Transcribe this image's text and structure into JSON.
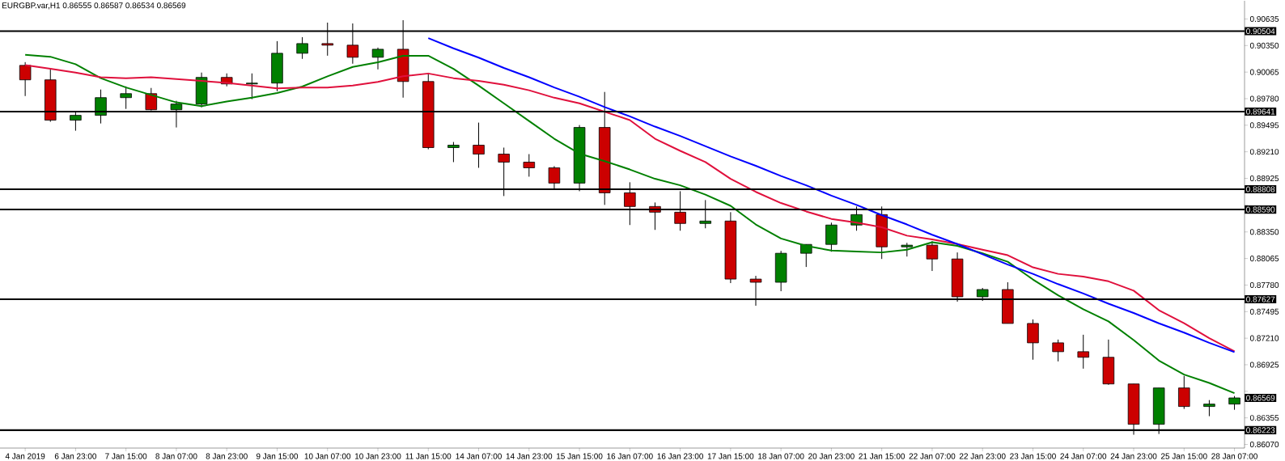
{
  "chart_data": {
    "type": "candlestick",
    "title": "EURGBP.var,H1  0.86555 0.86587 0.86534 0.86569",
    "categories": [
      "4 Jan 2019",
      null,
      "6 Jan 23:00",
      null,
      "7 Jan 15:00",
      null,
      "8 Jan 07:00",
      null,
      "8 Jan 23:00",
      null,
      "9 Jan 15:00",
      null,
      "10 Jan 07:00",
      null,
      "10 Jan 23:00",
      null,
      "11 Jan 15:00",
      null,
      "14 Jan 07:00",
      null,
      "14 Jan 23:00",
      null,
      "15 Jan 15:00",
      null,
      "16 Jan 07:00",
      null,
      "16 Jan 23:00",
      null,
      "17 Jan 15:00",
      null,
      "18 Jan 07:00",
      null,
      "20 Jan 23:00",
      null,
      "21 Jan 15:00",
      null,
      "22 Jan 07:00",
      null,
      "22 Jan 23:00",
      null,
      "23 Jan 15:00",
      null,
      "24 Jan 07:00",
      null,
      "24 Jan 23:00",
      null,
      "25 Jan 15:00",
      null,
      "28 Jan 07:00"
    ],
    "ohlc": [
      [
        0.90137,
        0.90172,
        0.89808,
        0.89982
      ],
      [
        0.89982,
        0.90094,
        0.89532,
        0.89549
      ],
      [
        0.89549,
        0.89635,
        0.89436,
        0.89601
      ],
      [
        0.89601,
        0.89878,
        0.89514,
        0.89791
      ],
      [
        0.89791,
        0.89912,
        0.8967,
        0.89834
      ],
      [
        0.89834,
        0.89895,
        0.89653,
        0.89661
      ],
      [
        0.89661,
        0.89757,
        0.89471,
        0.89722
      ],
      [
        0.89722,
        0.9006,
        0.89687,
        0.90008
      ],
      [
        0.90008,
        0.90051,
        0.89912,
        0.89938
      ],
      [
        0.89938,
        0.90051,
        0.89774,
        0.89947
      ],
      [
        0.89947,
        0.90397,
        0.8986,
        0.90267
      ],
      [
        0.90267,
        0.9044,
        0.90207,
        0.90371
      ],
      [
        0.90371,
        0.90596,
        0.90241,
        0.90354
      ],
      [
        0.90354,
        0.90587,
        0.90155,
        0.90224
      ],
      [
        0.90224,
        0.90328,
        0.90094,
        0.9031
      ],
      [
        0.9031,
        0.90622,
        0.89791,
        0.89964
      ],
      [
        0.89964,
        0.90051,
        0.89237,
        0.89255
      ],
      [
        0.89255,
        0.89315,
        0.89099,
        0.89281
      ],
      [
        0.89281,
        0.89523,
        0.89038,
        0.89185
      ],
      [
        0.89185,
        0.89255,
        0.88735,
        0.89099
      ],
      [
        0.89099,
        0.89185,
        0.88943,
        0.89038
      ],
      [
        0.89038,
        0.89056,
        0.88813,
        0.88874
      ],
      [
        0.88874,
        0.89497,
        0.88787,
        0.89471
      ],
      [
        0.89471,
        0.89852,
        0.8864,
        0.8877
      ],
      [
        0.8877,
        0.88883,
        0.88424,
        0.88623
      ],
      [
        0.88623,
        0.88666,
        0.88372,
        0.88562
      ],
      [
        0.88562,
        0.88787,
        0.88363,
        0.88441
      ],
      [
        0.88441,
        0.88692,
        0.88389,
        0.88467
      ],
      [
        0.88467,
        0.88562,
        0.87801,
        0.87844
      ],
      [
        0.87844,
        0.87879,
        0.87558,
        0.8781
      ],
      [
        0.8781,
        0.88147,
        0.87714,
        0.88121
      ],
      [
        0.88121,
        0.88216,
        0.87974,
        0.88216
      ],
      [
        0.88216,
        0.8845,
        0.88138,
        0.88424
      ],
      [
        0.88424,
        0.88623,
        0.88363,
        0.88536
      ],
      [
        0.88536,
        0.88623,
        0.8806,
        0.8819
      ],
      [
        0.8819,
        0.88233,
        0.88086,
        0.88208
      ],
      [
        0.88208,
        0.88251,
        0.87931,
        0.8806
      ],
      [
        0.8806,
        0.8813,
        0.87602,
        0.87654
      ],
      [
        0.87654,
        0.87749,
        0.8761,
        0.87732
      ],
      [
        0.87732,
        0.8781,
        0.87368,
        0.87368
      ],
      [
        0.87368,
        0.87411,
        0.86979,
        0.8716
      ],
      [
        0.8716,
        0.87195,
        0.86961,
        0.87065
      ],
      [
        0.87065,
        0.87247,
        0.86883,
        0.87005
      ],
      [
        0.87005,
        0.87195,
        0.8671,
        0.86719
      ],
      [
        0.86719,
        0.86719,
        0.86174,
        0.86286
      ],
      [
        0.86286,
        0.86676,
        0.86182,
        0.86676
      ],
      [
        0.86676,
        0.86806,
        0.86451,
        0.86477
      ],
      [
        0.86477,
        0.86546,
        0.86373,
        0.86503
      ],
      [
        0.86503,
        0.86589,
        0.86442,
        0.86569
      ]
    ],
    "colors": [
      "#cc0000",
      "#cc0000",
      "#008000",
      "#008000",
      "#008000",
      "#cc0000",
      "#008000",
      "#008000",
      "#cc0000",
      "#008000",
      "#008000",
      "#008000",
      "#cc0000",
      "#cc0000",
      "#008000",
      "#cc0000",
      "#cc0000",
      "#008000",
      "#cc0000",
      "#cc0000",
      "#cc0000",
      "#cc0000",
      "#008000",
      "#cc0000",
      "#cc0000",
      "#cc0000",
      "#cc0000",
      "#008000",
      "#cc0000",
      "#cc0000",
      "#008000",
      "#008000",
      "#008000",
      "#008000",
      "#cc0000",
      "#008000",
      "#cc0000",
      "#cc0000",
      "#008000",
      "#cc0000",
      "#cc0000",
      "#cc0000",
      "#cc0000",
      "#cc0000",
      "#cc0000",
      "#008000",
      "#cc0000",
      "#008000",
      "#008000"
    ],
    "series": [
      {
        "type": "line",
        "color": "#008000",
        "values": [
          0.9025,
          0.9023,
          0.9015,
          0.9,
          0.899,
          0.8982,
          0.8974,
          0.897,
          0.8975,
          0.8979,
          0.8984,
          0.8991,
          0.9002,
          0.9012,
          0.9017,
          0.9024,
          0.9024,
          0.901,
          0.8992,
          0.8973,
          0.8954,
          0.8935,
          0.8919,
          0.8911,
          0.8902,
          0.8892,
          0.8885,
          0.8875,
          0.8863,
          0.8843,
          0.8828,
          0.882,
          0.8815,
          0.8814,
          0.8813,
          0.8816,
          0.8824,
          0.882,
          0.8812,
          0.8803,
          0.8784,
          0.8767,
          0.8752,
          0.8739,
          0.8719,
          0.8697,
          0.8682,
          0.8673,
          0.8662
        ]
      },
      {
        "type": "line",
        "color": "#e0103c",
        "values": [
          0.9014,
          0.901,
          0.9006,
          0.9001,
          0.9,
          0.9001,
          0.8999,
          0.8997,
          0.8995,
          0.8992,
          0.8989,
          0.899,
          0.899,
          0.8992,
          0.8996,
          0.9002,
          0.9005,
          0.9,
          0.8997,
          0.8993,
          0.8987,
          0.8979,
          0.8973,
          0.8964,
          0.8955,
          0.8935,
          0.8922,
          0.891,
          0.8892,
          0.8878,
          0.8866,
          0.8857,
          0.8849,
          0.8845,
          0.884,
          0.8831,
          0.8827,
          0.8822,
          0.8816,
          0.881,
          0.8797,
          0.879,
          0.8787,
          0.8782,
          0.8772,
          0.8751,
          0.8737,
          0.8721,
          0.8707
        ]
      },
      {
        "type": "line",
        "color": "#0000ff",
        "values": [
          null,
          null,
          null,
          null,
          null,
          null,
          null,
          null,
          null,
          null,
          null,
          null,
          null,
          null,
          null,
          null,
          0.9043,
          0.9032,
          0.9022,
          0.9011,
          0.9001,
          0.899,
          0.898,
          0.8969,
          0.8959,
          0.8948,
          0.8938,
          0.8927,
          0.8916,
          0.8906,
          0.8895,
          0.8885,
          0.8874,
          0.8864,
          0.8853,
          0.8843,
          0.8832,
          0.8822,
          0.8811,
          0.88,
          0.879,
          0.8779,
          0.8769,
          0.8758,
          0.8748,
          0.8737,
          0.8727,
          0.8716,
          0.8706
        ]
      }
    ],
    "ylim": [
      0.86031,
      0.9083
    ],
    "yticks": [
      {
        "value": 0.90635,
        "label": "0.90635"
      },
      {
        "value": 0.9035,
        "label": "0.90350"
      },
      {
        "value": 0.90065,
        "label": "0.90065"
      },
      {
        "value": 0.8978,
        "label": "0.89780"
      },
      {
        "value": 0.89495,
        "label": "0.89495"
      },
      {
        "value": 0.8921,
        "label": "0.89210"
      },
      {
        "value": 0.88925,
        "label": "0.88925"
      },
      {
        "value": 0.8864,
        "label": null
      },
      {
        "value": 0.8835,
        "label": "0.88350"
      },
      {
        "value": 0.88065,
        "label": "0.88065"
      },
      {
        "value": 0.8778,
        "label": "0.87780"
      },
      {
        "value": 0.87495,
        "label": "0.87495"
      },
      {
        "value": 0.8721,
        "label": "0.87210"
      },
      {
        "value": 0.86925,
        "label": "0.86925"
      },
      {
        "value": 0.8664,
        "label": null
      },
      {
        "value": 0.86355,
        "label": "0.86355"
      },
      {
        "value": 0.8607,
        "label": "0.86070"
      }
    ],
    "ref_lines": [
      {
        "axis": "y",
        "value": 0.90504,
        "label": "0.90504",
        "color": "#000000"
      },
      {
        "axis": "y",
        "value": 0.89641,
        "label": "0.89641",
        "color": "#000000"
      },
      {
        "axis": "y",
        "value": 0.88808,
        "label": "0.88808",
        "color": "#000000"
      },
      {
        "axis": "y",
        "value": 0.8859,
        "label": "0.88590",
        "color": "#000000"
      },
      {
        "axis": "y",
        "value": 0.87627,
        "label": "0.87627",
        "color": "#000000"
      },
      {
        "axis": "y",
        "value": 0.86223,
        "label": "0.86223",
        "color": "#000000"
      }
    ],
    "annotations": [
      "0.86569"
    ]
  }
}
